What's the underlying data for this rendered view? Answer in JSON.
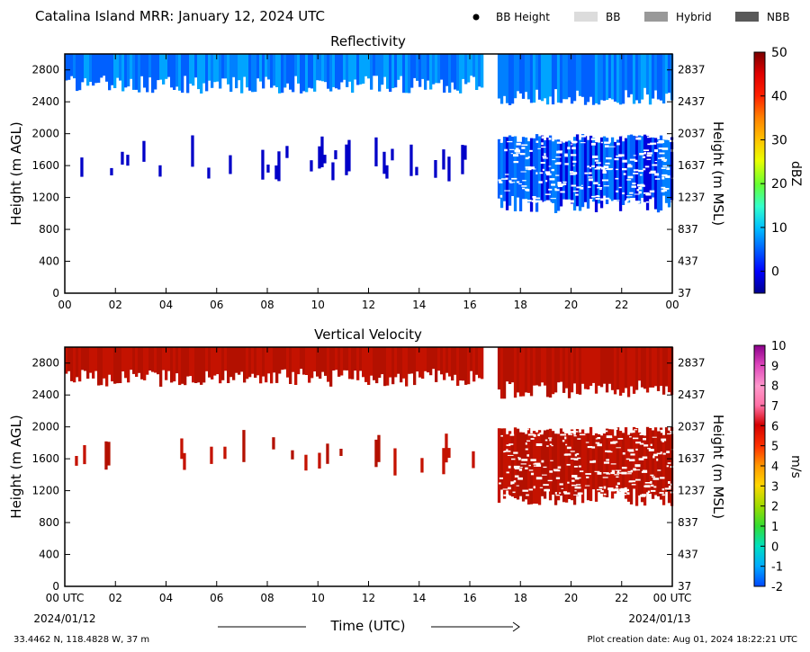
{
  "header": {
    "title": "Catalina Island MRR:  January 12, 2024 UTC",
    "legend": [
      {
        "label": "BB Height",
        "kind": "dot",
        "color": "#000000"
      },
      {
        "label": "BB",
        "kind": "swatch",
        "color": "#dcdcdc"
      },
      {
        "label": "Hybrid",
        "kind": "swatch",
        "color": "#999999"
      },
      {
        "label": "NBB",
        "kind": "swatch",
        "color": "#595959"
      }
    ]
  },
  "chart_data": [
    {
      "type": "heatmap",
      "title": "Reflectivity",
      "ylabel": "Height (m AGL)",
      "ylabel_right": "Height (m MSL)",
      "ylim": [
        0,
        3000
      ],
      "xlim": [
        0,
        24
      ],
      "y_ticks": [
        "0",
        "400",
        "800",
        "1200",
        "1600",
        "2000",
        "2400",
        "2800"
      ],
      "y_ticks_right": [
        "37",
        "437",
        "837",
        "1237",
        "1637",
        "2037",
        "2437",
        "2837"
      ],
      "x_ticks": [
        "00",
        "02",
        "04",
        "06",
        "08",
        "10",
        "12",
        "14",
        "16",
        "18",
        "20",
        "22",
        "00"
      ],
      "colorbar": {
        "label": "dBZ",
        "range": [
          -5,
          50
        ],
        "ticks": [
          "0",
          "10",
          "20",
          "30",
          "40",
          "50"
        ]
      },
      "regions": [
        {
          "x_start": 0,
          "x_end": 16.5,
          "y_bottom": 2650,
          "y_top": 3000,
          "value_dbz": 4
        },
        {
          "x_start": 17.1,
          "x_end": 24,
          "y_bottom": 2500,
          "y_top": 3000,
          "value_dbz": 3
        },
        {
          "x_start": 0.4,
          "x_end": 16.5,
          "y_bottom": 1400,
          "y_top": 1900,
          "value_dbz": -3,
          "sparse": true
        },
        {
          "x_start": 17.1,
          "x_end": 24,
          "y_bottom": 1150,
          "y_top": 2000,
          "value_dbz": -1
        }
      ],
      "data_gap_hours": [
        16.5,
        17.1
      ]
    },
    {
      "type": "heatmap",
      "title": "Vertical Velocity",
      "ylabel": "Height (m AGL)",
      "ylabel_right": "Height (m MSL)",
      "ylim": [
        0,
        3000
      ],
      "xlim": [
        0,
        24
      ],
      "y_ticks": [
        "0",
        "400",
        "800",
        "1200",
        "1600",
        "2000",
        "2400",
        "2800"
      ],
      "y_ticks_right": [
        "37",
        "437",
        "837",
        "1237",
        "1637",
        "2037",
        "2437",
        "2837"
      ],
      "x_ticks": [
        "00 UTC",
        "02",
        "04",
        "06",
        "08",
        "10",
        "12",
        "14",
        "16",
        "18",
        "20",
        "22",
        "00 UTC"
      ],
      "colorbar": {
        "label": "m/s",
        "range": [
          -2,
          10
        ],
        "ticks": [
          "-2",
          "-1",
          "0",
          "1",
          "2",
          "3",
          "4",
          "5",
          "6",
          "7",
          "8",
          "9",
          "10"
        ]
      },
      "regions": [
        {
          "x_start": 0,
          "x_end": 16.5,
          "y_bottom": 2650,
          "y_top": 3000,
          "value_ms": 6
        },
        {
          "x_start": 17.1,
          "x_end": 24,
          "y_bottom": 2500,
          "y_top": 3000,
          "value_ms": 6
        },
        {
          "x_start": 0.4,
          "x_end": 16.5,
          "y_bottom": 1400,
          "y_top": 1900,
          "value_ms": 6,
          "sparse": true
        },
        {
          "x_start": 17.1,
          "x_end": 24,
          "y_bottom": 1150,
          "y_top": 2000,
          "value_ms": 6
        }
      ],
      "data_gap_hours": [
        16.5,
        17.1
      ]
    }
  ],
  "footer": {
    "date_left": "2024/01/12",
    "date_right": "2024/01/13",
    "xlabel": "Time (UTC)",
    "location": "33.4462 N, 118.4828 W, 37 m",
    "creation": "Plot creation date: Aug 01, 2024 18:22:21 UTC"
  }
}
